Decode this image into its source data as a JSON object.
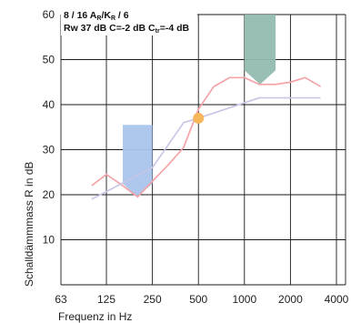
{
  "chart_data": {
    "type": "line",
    "xlabel": "Frequenz in Hz",
    "ylabel": "Schalldämmmass R in dB",
    "x_scale": "log",
    "x_ticks": [
      63,
      125,
      250,
      500,
      1000,
      2000,
      4000
    ],
    "x_tick_labels": [
      "63",
      "125",
      "250",
      "500",
      "1000",
      "2000",
      "4000"
    ],
    "y_ticks": [
      10,
      20,
      30,
      40,
      50,
      60
    ],
    "ylim": [
      0,
      60
    ],
    "xlim": [
      63,
      4000
    ],
    "grid": true,
    "annotation": {
      "line1_parts": [
        "8 / 16 A",
        "R",
        "/K",
        "R",
        " / 6"
      ],
      "line2_parts": [
        "Rw 37 dB C=-2 dB C",
        "tr",
        "=-4 dB"
      ]
    },
    "series": [
      {
        "color": "#f4a3a8",
        "x": [
          100,
          125,
          160,
          200,
          250,
          315,
          400,
          500,
          630,
          800,
          1000,
          1250,
          1600,
          2000,
          2500,
          3150
        ],
        "y": [
          22,
          24.5,
          22,
          19.5,
          23,
          26.5,
          30.5,
          39,
          44,
          46,
          46,
          44.5,
          44.5,
          45,
          46,
          44
        ]
      },
      {
        "color": "#c8c6e6",
        "x": [
          100,
          250,
          400,
          500,
          1250,
          3150
        ],
        "y": [
          19,
          26,
          36,
          37,
          41.5,
          41.5
        ]
      }
    ],
    "markers": [
      {
        "color": "#f8b65a",
        "x": 500,
        "y": 37
      }
    ],
    "arrows": [
      {
        "color": "#a9c4ec",
        "direction": "down",
        "x_from": 160,
        "x_to": 250,
        "y_from": 35.5,
        "y_to": 19.5
      },
      {
        "color": "#94bcb0",
        "direction": "down",
        "x_from": 1000,
        "x_to": 1600,
        "y_from": 60,
        "y_to": 44.5
      }
    ]
  }
}
